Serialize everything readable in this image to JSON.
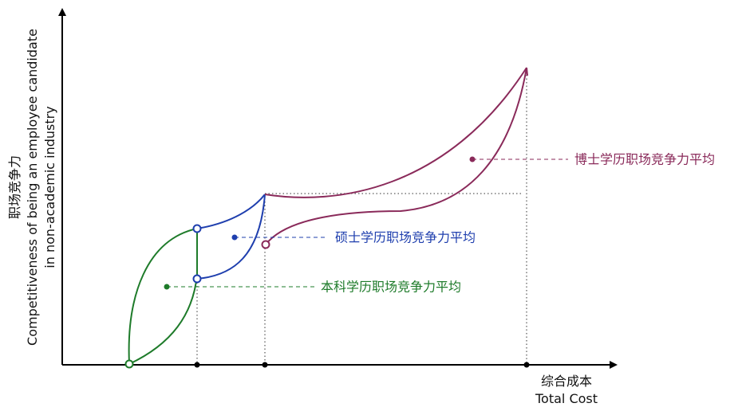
{
  "y_axis": {
    "lines": [
      "职场竞争力",
      "Competitiveness of being an employee candidate",
      "in non-academic industry"
    ]
  },
  "x_axis": {
    "lines": [
      "综合成本",
      "Total Cost"
    ]
  },
  "annotations": {
    "phd": "博士学历职场竞争力平均",
    "master": "硕士学历职场竞争力平均",
    "bachelor": "本科学历职场竞争力平均"
  }
}
